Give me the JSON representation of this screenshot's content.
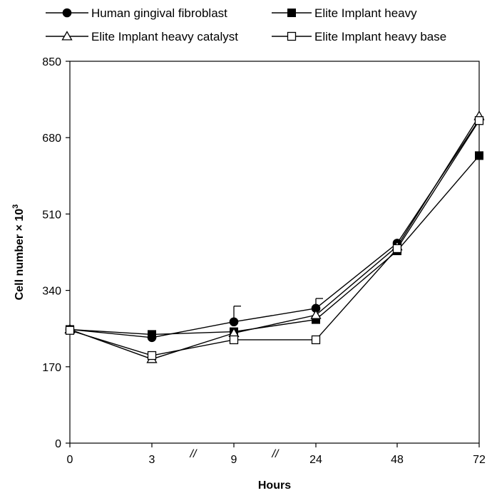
{
  "chart_data": {
    "type": "line",
    "categories": [
      "0",
      "3",
      "9",
      "24",
      "48",
      "72"
    ],
    "xlabel": "Hours",
    "ylabel": "Cell number × 10",
    "ylabel_sup": "3",
    "ylim": [
      0,
      850
    ],
    "yticks": [
      0,
      170,
      340,
      510,
      680,
      850
    ],
    "axis_breaks": [
      {
        "between": [
          "3",
          "9"
        ],
        "mark": "//"
      },
      {
        "between": [
          "9",
          "24"
        ],
        "mark": "//"
      }
    ],
    "grid": false,
    "legend_position": "top",
    "series": [
      {
        "name": "Human gingival fibroblast",
        "marker": "circle-filled",
        "values": [
          253,
          235,
          270,
          300,
          445,
          720
        ],
        "error_up": [
          0,
          0,
          35,
          22,
          0,
          0
        ]
      },
      {
        "name": "Elite Implant heavy",
        "marker": "square-filled",
        "values": [
          253,
          242,
          248,
          275,
          428,
          640
        ],
        "error_up": [
          0,
          0,
          0,
          0,
          0,
          0
        ]
      },
      {
        "name": "Elite Implant heavy catalyst",
        "marker": "triangle-open",
        "values": [
          253,
          187,
          245,
          285,
          438,
          728
        ],
        "error_up": [
          0,
          0,
          0,
          0,
          0,
          0
        ]
      },
      {
        "name": "Elite Implant heavy base",
        "marker": "square-open",
        "values": [
          251,
          195,
          230,
          230,
          433,
          718
        ],
        "error_up": [
          0,
          0,
          0,
          0,
          0,
          0
        ]
      }
    ]
  }
}
